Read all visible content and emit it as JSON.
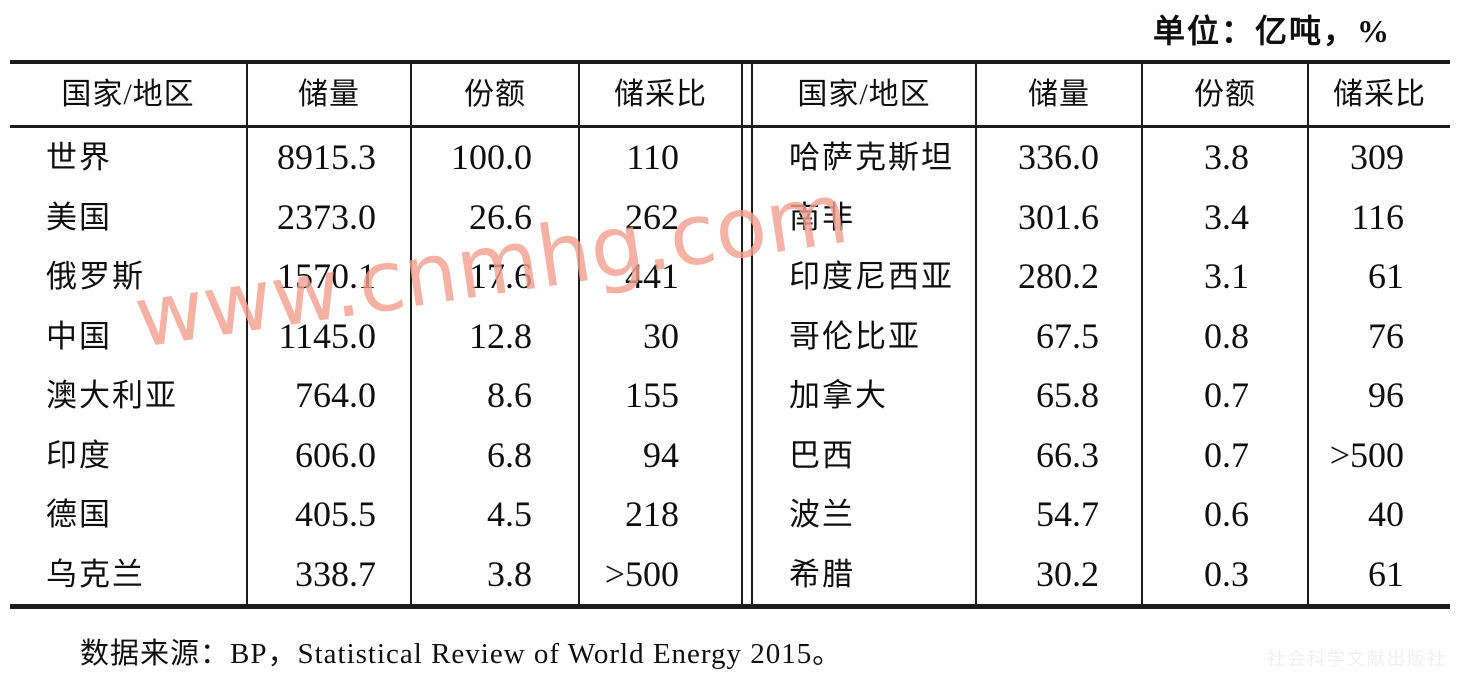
{
  "page": {
    "unit_label": "单位：亿吨，%",
    "source_note": "数据来源：BP，Statistical Review of World Energy 2015。"
  },
  "watermark": {
    "text": "www.cnmhg.com",
    "color": "#f3a091"
  },
  "publisher_watermark": {
    "text": "社会科学文献出版社"
  },
  "table": {
    "headers": [
      "国家/地区",
      "储量",
      "份额",
      "储采比"
    ],
    "left_rows": [
      [
        "世界",
        "8915.3",
        "100.0",
        "110"
      ],
      [
        "美国",
        "2373.0",
        "26.6",
        "262"
      ],
      [
        "俄罗斯",
        "1570.1",
        "17.6",
        "441"
      ],
      [
        "中国",
        "1145.0",
        "12.8",
        "30"
      ],
      [
        "澳大利亚",
        "764.0",
        "8.6",
        "155"
      ],
      [
        "印度",
        "606.0",
        "6.8",
        "94"
      ],
      [
        "德国",
        "405.5",
        "4.5",
        "218"
      ],
      [
        "乌克兰",
        "338.7",
        "3.8",
        ">500"
      ]
    ],
    "right_rows": [
      [
        "哈萨克斯坦",
        "336.0",
        "3.8",
        "309"
      ],
      [
        "南非",
        "301.6",
        "3.4",
        "116"
      ],
      [
        "印度尼西亚",
        "280.2",
        "3.1",
        "61"
      ],
      [
        "哥伦比亚",
        "67.5",
        "0.8",
        "76"
      ],
      [
        "加拿大",
        "65.8",
        "0.7",
        "96"
      ],
      [
        "巴西",
        "66.3",
        "0.7",
        ">500"
      ],
      [
        "波兰",
        "54.7",
        "0.6",
        "40"
      ],
      [
        "希腊",
        "30.2",
        "0.3",
        "61"
      ]
    ]
  },
  "colors": {
    "line": "#1c1c1c",
    "text": "#0f0f0f",
    "watermark": "#f3a091"
  }
}
